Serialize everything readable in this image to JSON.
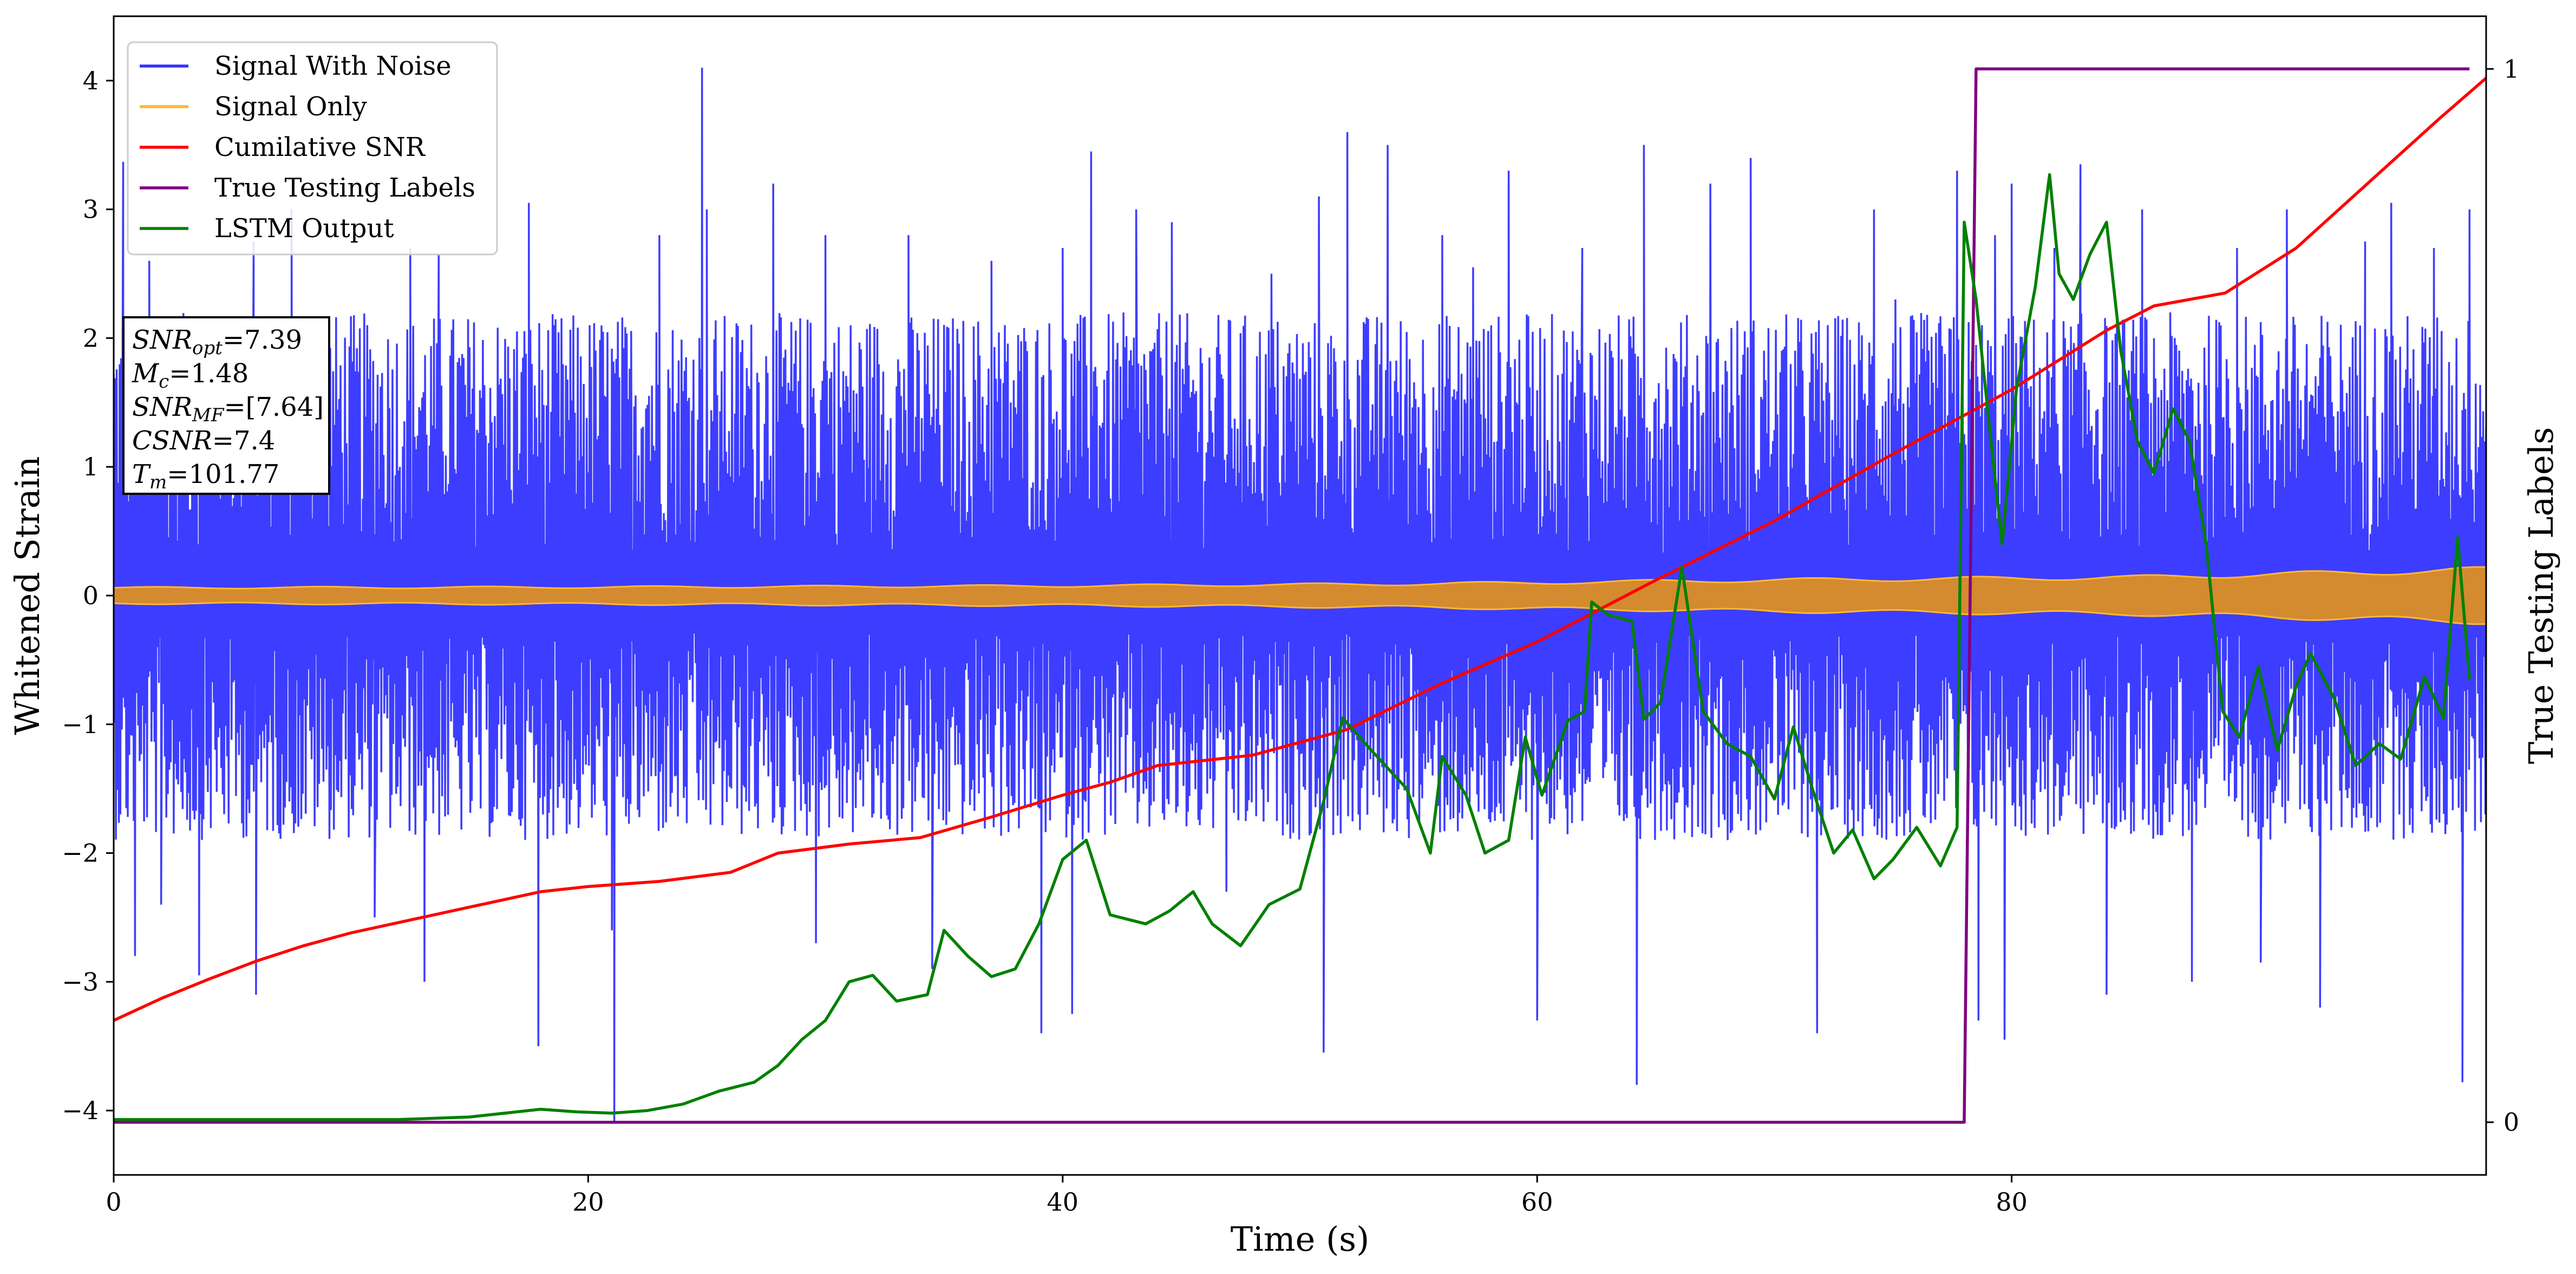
{
  "chart_data": {
    "type": "line",
    "xlabel": "Time (s)",
    "ylabel": "Whitened Strain",
    "y2label": "True Testing Labels",
    "xlim": [
      0,
      100
    ],
    "ylim": [
      -4.5,
      4.5
    ],
    "y2lim": [
      -0.05,
      1.05
    ],
    "grid": false,
    "legend_position": "top-left",
    "x_ticks": [
      {
        "value": 0,
        "label": "0"
      },
      {
        "value": 20,
        "label": "20"
      },
      {
        "value": 40,
        "label": "40"
      },
      {
        "value": 60,
        "label": "60"
      },
      {
        "value": 80,
        "label": "80"
      }
    ],
    "y_ticks": [
      {
        "value": -4,
        "label": "−4"
      },
      {
        "value": -3,
        "label": "−3"
      },
      {
        "value": -2,
        "label": "−2"
      },
      {
        "value": -1,
        "label": "−1"
      },
      {
        "value": 0,
        "label": "0"
      },
      {
        "value": 1,
        "label": "1"
      },
      {
        "value": 2,
        "label": "2"
      },
      {
        "value": 3,
        "label": "3"
      },
      {
        "value": 4,
        "label": "4"
      }
    ],
    "y2_ticks": [
      {
        "value": 0,
        "label": "0"
      },
      {
        "value": 1,
        "label": "1"
      }
    ],
    "legend": [
      {
        "label": "Signal With Noise",
        "color": "#3333ff"
      },
      {
        "label": "Signal Only",
        "color": "#ffb733"
      },
      {
        "label": "Cumilative SNR",
        "color": "#ff0000"
      },
      {
        "label": "True Testing Labels",
        "color": "#800080"
      },
      {
        "label": "LSTM Output",
        "color": "#008000"
      }
    ],
    "annotation": {
      "lines": [
        {
          "sym": "SNR",
          "sub": "opt",
          "val": "=7.39"
        },
        {
          "sym": "M",
          "sub": "c",
          "val": "=1.48"
        },
        {
          "sym": "SNR",
          "sub": "MF",
          "val": "=[7.64]"
        },
        {
          "sym": "CSNR",
          "sub": "",
          "val": "=7.4"
        },
        {
          "sym": "T",
          "sub": "m",
          "val": "=101.77"
        }
      ]
    },
    "series": [
      {
        "name": "Signal With Noise",
        "color": "#3333ff",
        "axis": "left",
        "style": "dense-noise",
        "typical_range": [
          -1.9,
          2.2
        ],
        "spikes": [
          [
            0.4,
            3.37
          ],
          [
            0.9,
            -2.8
          ],
          [
            1.5,
            2.6
          ],
          [
            2.0,
            -2.4
          ],
          [
            3.6,
            -2.95
          ],
          [
            5.9,
            2.75
          ],
          [
            6.0,
            -3.1
          ],
          [
            7.5,
            3.0
          ],
          [
            11.0,
            -2.5
          ],
          [
            12.5,
            2.7
          ],
          [
            13.1,
            -3.0
          ],
          [
            13.7,
            2.65
          ],
          [
            17.5,
            3.05
          ],
          [
            17.9,
            -3.5
          ],
          [
            21.1,
            -4.1
          ],
          [
            21.0,
            -2.6
          ],
          [
            23.0,
            2.8
          ],
          [
            24.8,
            4.1
          ],
          [
            25.0,
            3.0
          ],
          [
            27.8,
            3.2
          ],
          [
            29.6,
            -2.7
          ],
          [
            30.0,
            2.8
          ],
          [
            33.5,
            2.8
          ],
          [
            34.5,
            -2.9
          ],
          [
            37.0,
            2.6
          ],
          [
            39.1,
            -3.4
          ],
          [
            40.0,
            2.7
          ],
          [
            40.4,
            -3.25
          ],
          [
            41.2,
            3.45
          ],
          [
            43.1,
            3.0
          ],
          [
            44.6,
            2.9
          ],
          [
            46.9,
            -2.3
          ],
          [
            48.8,
            2.5
          ],
          [
            50.8,
            3.1
          ],
          [
            51.0,
            -3.55
          ],
          [
            52.0,
            3.6
          ],
          [
            53.7,
            3.5
          ],
          [
            56.0,
            2.8
          ],
          [
            57.3,
            2.55
          ],
          [
            58.8,
            3.3
          ],
          [
            60.0,
            -3.3
          ],
          [
            61.9,
            2.7
          ],
          [
            64.2,
            -3.8
          ],
          [
            64.5,
            3.5
          ],
          [
            67.3,
            3.2
          ],
          [
            69.0,
            3.4
          ],
          [
            71.8,
            -3.4
          ],
          [
            74.2,
            3.0
          ],
          [
            75.1,
            2.3
          ],
          [
            77.7,
            3.3
          ],
          [
            78.6,
            -3.3
          ],
          [
            79.3,
            2.8
          ],
          [
            79.7,
            -3.45
          ],
          [
            80.0,
            3.2
          ],
          [
            81.8,
            2.7
          ],
          [
            82.9,
            3.35
          ],
          [
            84.0,
            -3.1
          ],
          [
            85.5,
            3.0
          ],
          [
            87.6,
            -3.0
          ],
          [
            89.5,
            2.7
          ],
          [
            90.5,
            -2.85
          ],
          [
            91.6,
            3.0
          ],
          [
            93.0,
            -3.2
          ],
          [
            94.9,
            2.75
          ],
          [
            96.0,
            3.05
          ],
          [
            97.8,
            2.7
          ],
          [
            99.0,
            -3.78
          ],
          [
            99.3,
            3.0
          ]
        ]
      },
      {
        "name": "Signal Only",
        "color": "#ffb733",
        "axis": "left",
        "style": "chirp-envelope",
        "envelope": [
          [
            0,
            0.06
          ],
          [
            20,
            0.065
          ],
          [
            40,
            0.075
          ],
          [
            55,
            0.09
          ],
          [
            70,
            0.12
          ],
          [
            85,
            0.14
          ],
          [
            100,
            0.2
          ]
        ]
      },
      {
        "name": "Cumilative SNR",
        "color": "#ff0000",
        "axis": "left",
        "points": [
          [
            0,
            -3.3
          ],
          [
            2,
            -3.13
          ],
          [
            4,
            -2.98
          ],
          [
            6,
            -2.84
          ],
          [
            8,
            -2.72
          ],
          [
            10,
            -2.62
          ],
          [
            13,
            -2.5
          ],
          [
            16,
            -2.38
          ],
          [
            18,
            -2.3
          ],
          [
            20,
            -2.26
          ],
          [
            23,
            -2.22
          ],
          [
            26,
            -2.15
          ],
          [
            28,
            -2.0
          ],
          [
            31,
            -1.93
          ],
          [
            34,
            -1.88
          ],
          [
            37,
            -1.72
          ],
          [
            40,
            -1.55
          ],
          [
            42,
            -1.45
          ],
          [
            44,
            -1.32
          ],
          [
            48,
            -1.24
          ],
          [
            52,
            -1.04
          ],
          [
            56,
            -0.68
          ],
          [
            60,
            -0.36
          ],
          [
            65,
            0.12
          ],
          [
            70,
            0.58
          ],
          [
            75,
            1.1
          ],
          [
            80,
            1.6
          ],
          [
            84,
            2.06
          ],
          [
            86,
            2.25
          ],
          [
            89,
            2.35
          ],
          [
            92,
            2.7
          ],
          [
            95,
            3.2
          ],
          [
            98,
            3.7
          ],
          [
            100,
            4.02
          ]
        ]
      },
      {
        "name": "True Testing Labels",
        "color": "#800080",
        "axis": "right",
        "points": [
          [
            0,
            0
          ],
          [
            78.0,
            0
          ],
          [
            78.5,
            1
          ],
          [
            99.3,
            1
          ]
        ]
      },
      {
        "name": "LSTM Output",
        "color": "#008000",
        "axis": "left",
        "points": [
          [
            0,
            -4.07
          ],
          [
            12,
            -4.07
          ],
          [
            15,
            -4.05
          ],
          [
            16.5,
            -4.02
          ],
          [
            18,
            -3.99
          ],
          [
            19.5,
            -4.01
          ],
          [
            21,
            -4.02
          ],
          [
            22.5,
            -4.0
          ],
          [
            24,
            -3.95
          ],
          [
            25.5,
            -3.85
          ],
          [
            27,
            -3.78
          ],
          [
            28,
            -3.65
          ],
          [
            29,
            -3.45
          ],
          [
            30,
            -3.3
          ],
          [
            31,
            -3.0
          ],
          [
            32,
            -2.95
          ],
          [
            33,
            -3.15
          ],
          [
            34.3,
            -3.1
          ],
          [
            35,
            -2.6
          ],
          [
            36,
            -2.8
          ],
          [
            37,
            -2.96
          ],
          [
            38,
            -2.9
          ],
          [
            39,
            -2.55
          ],
          [
            40,
            -2.05
          ],
          [
            41,
            -1.9
          ],
          [
            42,
            -2.48
          ],
          [
            43.5,
            -2.55
          ],
          [
            44.5,
            -2.45
          ],
          [
            45.5,
            -2.3
          ],
          [
            46.3,
            -2.55
          ],
          [
            47.5,
            -2.72
          ],
          [
            48.7,
            -2.4
          ],
          [
            50,
            -2.28
          ],
          [
            51,
            -1.6
          ],
          [
            51.8,
            -0.95
          ],
          [
            53,
            -1.2
          ],
          [
            54.5,
            -1.5
          ],
          [
            55.5,
            -2.0
          ],
          [
            56,
            -1.25
          ],
          [
            57,
            -1.55
          ],
          [
            57.8,
            -2.0
          ],
          [
            58.8,
            -1.9
          ],
          [
            59.5,
            -1.1
          ],
          [
            60.2,
            -1.55
          ],
          [
            61.3,
            -0.97
          ],
          [
            62,
            -0.9
          ],
          [
            62.3,
            -0.05
          ],
          [
            63,
            -0.15
          ],
          [
            64,
            -0.2
          ],
          [
            64.5,
            -0.96
          ],
          [
            65.2,
            -0.83
          ],
          [
            66.1,
            0.22
          ],
          [
            67,
            -0.9
          ],
          [
            68,
            -1.15
          ],
          [
            69,
            -1.25
          ],
          [
            70,
            -1.58
          ],
          [
            70.8,
            -1.02
          ],
          [
            71.6,
            -1.5
          ],
          [
            72.5,
            -2.0
          ],
          [
            73.3,
            -1.82
          ],
          [
            74.2,
            -2.2
          ],
          [
            75,
            -2.05
          ],
          [
            76,
            -1.8
          ],
          [
            77,
            -2.1
          ],
          [
            77.7,
            -1.8
          ],
          [
            78.0,
            2.9
          ],
          [
            78.5,
            2.3
          ],
          [
            79.1,
            1.25
          ],
          [
            79.6,
            0.4
          ],
          [
            80.2,
            1.6
          ],
          [
            81.0,
            2.4
          ],
          [
            81.6,
            3.27
          ],
          [
            82.0,
            2.5
          ],
          [
            82.6,
            2.3
          ],
          [
            83.3,
            2.65
          ],
          [
            84.0,
            2.9
          ],
          [
            84.6,
            1.9
          ],
          [
            85.3,
            1.2
          ],
          [
            86.0,
            0.95
          ],
          [
            86.8,
            1.45
          ],
          [
            87.5,
            1.2
          ],
          [
            88.2,
            0.4
          ],
          [
            88.9,
            -0.9
          ],
          [
            89.6,
            -1.1
          ],
          [
            90.4,
            -0.55
          ],
          [
            91.2,
            -1.2
          ],
          [
            92,
            -0.7
          ],
          [
            92.6,
            -0.45
          ],
          [
            93.6,
            -0.8
          ],
          [
            94.5,
            -1.32
          ],
          [
            95.5,
            -1.15
          ],
          [
            96.4,
            -1.27
          ],
          [
            97.4,
            -0.63
          ],
          [
            98.2,
            -0.95
          ],
          [
            98.8,
            0.45
          ],
          [
            99.3,
            -0.65
          ]
        ]
      }
    ]
  }
}
